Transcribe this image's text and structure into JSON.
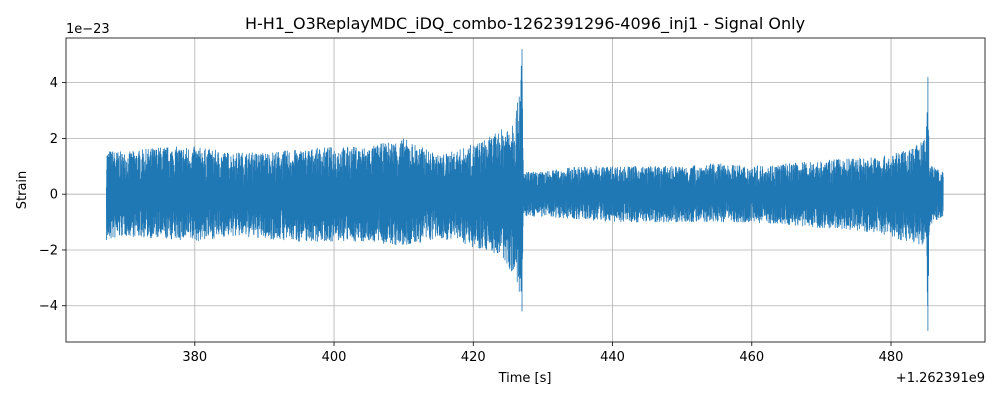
{
  "chart_data": {
    "type": "line",
    "title": "H-H1_O3ReplayMDC_iDQ_combo-1262391296-4096_inj1 - Signal Only",
    "xlabel": "Time [s]",
    "ylabel": "Strain",
    "x_offset_label": "+1.262391e9",
    "y_scale_label": "1e−23",
    "xlim": [
      361.5,
      493.5
    ],
    "ylim": [
      -5.3,
      5.6
    ],
    "x_ticks": [
      380,
      400,
      420,
      440,
      460,
      480
    ],
    "x_tick_labels": [
      "380",
      "400",
      "420",
      "440",
      "460",
      "480"
    ],
    "y_ticks": [
      -4,
      -2,
      0,
      2,
      4
    ],
    "y_tick_labels": [
      "−4",
      "−2",
      "0",
      "2",
      "4"
    ],
    "grid": true,
    "series_color": "#1f77b4",
    "series": [
      {
        "x": [
          367.3,
          370,
          375,
          380,
          385,
          390,
          395,
          400,
          405,
          410,
          415,
          418,
          420,
          422,
          424,
          425,
          426,
          426.6,
          427,
          427.2,
          427.5,
          428,
          430,
          435,
          440,
          445,
          450,
          455,
          460,
          465,
          470,
          475,
          480,
          482,
          484,
          485,
          485.3,
          485.5,
          486,
          487.5
        ],
        "upper": [
          1.6,
          1.5,
          1.7,
          1.7,
          1.5,
          1.5,
          1.6,
          1.7,
          1.7,
          2.0,
          1.4,
          1.6,
          1.8,
          2.0,
          2.3,
          2.6,
          3.0,
          3.5,
          5.2,
          0.8,
          0.8,
          0.8,
          0.8,
          1.0,
          1.0,
          1.0,
          1.0,
          1.1,
          1.0,
          1.1,
          1.2,
          1.3,
          1.4,
          1.6,
          1.8,
          2.0,
          4.2,
          1.2,
          1.0,
          0.8
        ],
        "lower": [
          -1.7,
          -1.5,
          -1.6,
          -1.7,
          -1.5,
          -1.6,
          -1.7,
          -1.7,
          -1.7,
          -1.9,
          -1.6,
          -1.7,
          -1.9,
          -2.0,
          -2.3,
          -2.6,
          -3.0,
          -3.5,
          -4.2,
          -0.8,
          -0.8,
          -0.8,
          -0.8,
          -0.9,
          -1.0,
          -1.0,
          -1.0,
          -1.0,
          -1.0,
          -1.1,
          -1.2,
          -1.3,
          -1.5,
          -1.7,
          -1.8,
          -2.0,
          -4.9,
          -1.2,
          -1.0,
          -0.8
        ]
      }
    ]
  }
}
